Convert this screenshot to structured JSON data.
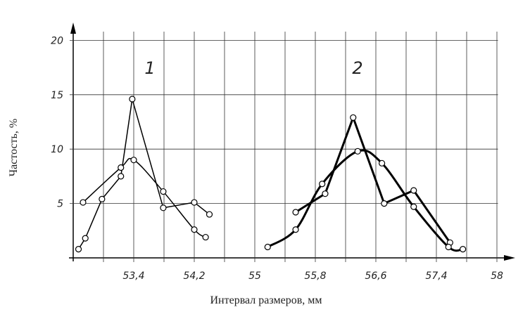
{
  "chart_data": {
    "type": "line",
    "y_label": "Частость, %",
    "x_label": "Интервал размеров, мм",
    "annotations": [
      "1",
      "2"
    ],
    "xlim": [
      52.6,
      58.4
    ],
    "ylim": [
      0,
      20.8
    ],
    "xticks": [
      {
        "value": 53.4,
        "label": "53,4"
      },
      {
        "value": 54.2,
        "label": "54,2"
      },
      55,
      {
        "value": 55.8,
        "label": "55,8"
      },
      {
        "value": 56.6,
        "label": "56,6"
      },
      {
        "value": 57.4,
        "label": "57,4"
      },
      {
        "value": 58.2,
        "label": "58"
      }
    ],
    "yticks": [
      5,
      10,
      15,
      20
    ],
    "xgrid": [
      53.0,
      53.4,
      53.8,
      54.2,
      54.6,
      55.0,
      55.4,
      55.8,
      56.2,
      56.6,
      57.0,
      57.4,
      57.8,
      58.2
    ],
    "grid": true,
    "series": [
      {
        "color": "#000000",
        "style": "thin",
        "smooth": false,
        "x": [
          52.67,
          52.76,
          52.98,
          53.23,
          53.38,
          53.79,
          54.2,
          54.4
        ],
        "values": [
          0.8,
          1.8,
          5.4,
          7.5,
          14.6,
          4.6,
          5.1,
          4.0
        ]
      },
      {
        "color": "#000000",
        "style": "thin",
        "smooth": true,
        "x": [
          52.73,
          53.23,
          53.4,
          53.79,
          54.2,
          54.35
        ],
        "values": [
          5.1,
          8.3,
          9.0,
          6.1,
          2.6,
          1.9
        ]
      },
      {
        "color": "#000000",
        "style": "thick",
        "smooth": false,
        "x": [
          55.54,
          55.93,
          56.3,
          56.71,
          57.1,
          57.58
        ],
        "values": [
          4.2,
          5.9,
          12.9,
          5.0,
          6.2,
          1.4
        ]
      },
      {
        "color": "#000000",
        "style": "thick",
        "smooth": true,
        "x": [
          55.17,
          55.54,
          55.89,
          56.36,
          56.68,
          57.1,
          57.56,
          57.75
        ],
        "values": [
          1.0,
          2.6,
          6.8,
          9.8,
          8.7,
          4.7,
          1.0,
          0.8
        ]
      }
    ]
  }
}
